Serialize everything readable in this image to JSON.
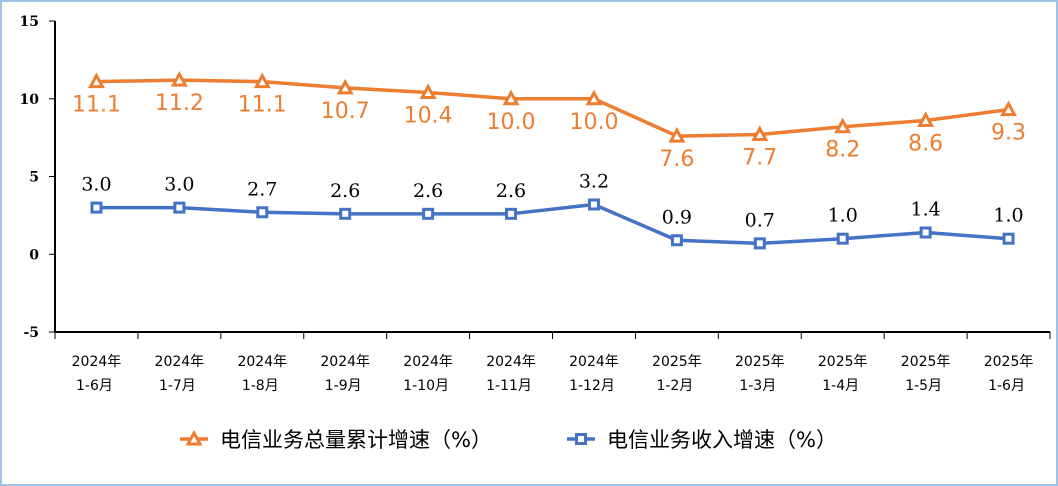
{
  "chart_data": {
    "type": "line",
    "title": "",
    "xlabel": "",
    "ylabel": "",
    "ylim": [
      -5,
      15
    ],
    "yticks": [
      "15",
      "10",
      "5",
      "0",
      "-5"
    ],
    "ytick_values": [
      15,
      10,
      5,
      0,
      -5
    ],
    "categories": [
      [
        "2024年",
        "1-6月"
      ],
      [
        "2024年",
        "1-7月"
      ],
      [
        "2024年",
        "1-8月"
      ],
      [
        "2024年",
        "1-9月"
      ],
      [
        "2024年",
        "1-10月"
      ],
      [
        "2024年",
        "1-11月"
      ],
      [
        "2024年",
        "1-12月"
      ],
      [
        "2025年",
        "1-2月"
      ],
      [
        "2025年",
        "1-3月"
      ],
      [
        "2025年",
        "1-4月"
      ],
      [
        "2025年",
        "1-5月"
      ],
      [
        "2025年",
        "1-6月"
      ]
    ],
    "series": [
      {
        "name": "电信业务总量累计增速（%）",
        "color": "#ed7d31",
        "marker": "triangle",
        "values": [
          11.1,
          11.2,
          11.1,
          10.7,
          10.4,
          10.0,
          10.0,
          7.6,
          7.7,
          8.2,
          8.6,
          9.3
        ],
        "labels": [
          "11.1",
          "11.2",
          "11.1",
          "10.7",
          "10.4",
          "10.0",
          "10.0",
          "7.6",
          "7.7",
          "8.2",
          "8.6",
          "9.3"
        ]
      },
      {
        "name": "电信业务收入增速（%）",
        "color": "#4472c4",
        "marker": "square",
        "values": [
          3.0,
          3.0,
          2.7,
          2.6,
          2.6,
          2.6,
          3.2,
          0.9,
          0.7,
          1.0,
          1.4,
          1.0
        ],
        "labels": [
          "3.0",
          "3.0",
          "2.7",
          "2.6",
          "2.6",
          "2.6",
          "3.2",
          "0.9",
          "0.7",
          "1.0",
          "1.4",
          "1.0"
        ]
      }
    ],
    "legend_position": "bottom",
    "grid": false
  }
}
